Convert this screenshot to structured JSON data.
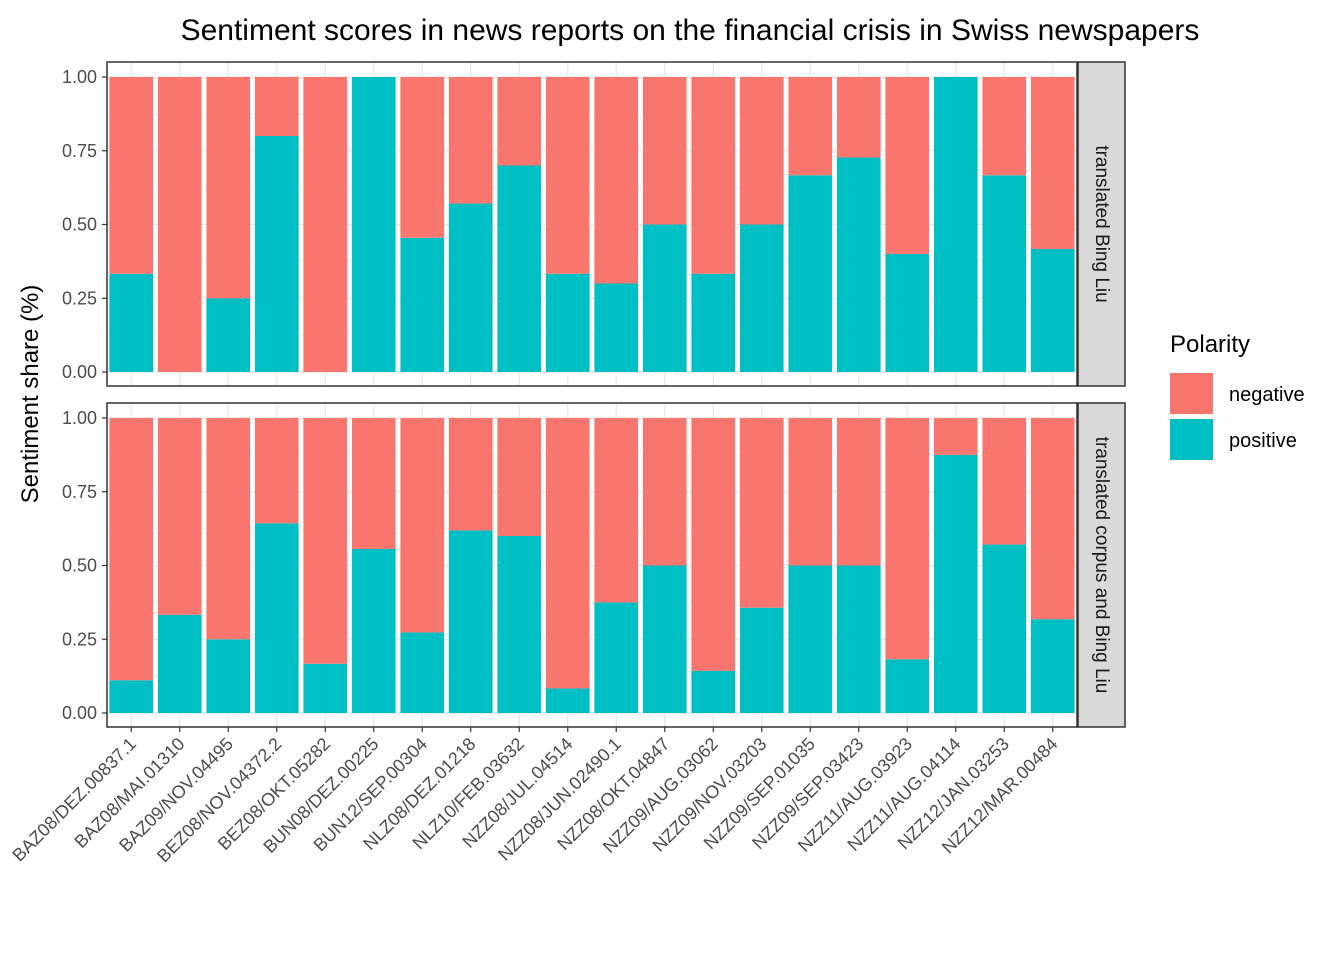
{
  "chart_data": {
    "type": "bar",
    "stacked": true,
    "facets": "rows",
    "title": "Sentiment scores in news reports on the financial crisis in Swiss newspapers",
    "xlabel": "",
    "ylabel": "Sentiment share (%)",
    "ylim": [
      0,
      1
    ],
    "yticks": [
      "0.00",
      "0.25",
      "0.50",
      "0.75",
      "1.00"
    ],
    "grid": true,
    "legend": {
      "title": "Polarity",
      "position": "right",
      "entries": [
        {
          "name": "negative",
          "color": "#F8766D"
        },
        {
          "name": "positive",
          "color": "#00BFC4"
        }
      ]
    },
    "categories": [
      "BAZ08/DEZ.00837.1",
      "BAZ08/MAI.01310",
      "BAZ09/NOV.04495",
      "BEZ08/NOV.04372.2",
      "BEZ08/OKT.05282",
      "BUN08/DEZ.00225",
      "BUN12/SEP.00304",
      "NLZ08/DEZ.01218",
      "NLZ10/FEB.03632",
      "NZZ08/JUL.04514",
      "NZZ08/JUN.02490.1",
      "NZZ08/OKT.04847",
      "NZZ09/AUG.03062",
      "NZZ09/NOV.03203",
      "NZZ09/SEP.01035",
      "NZZ09/SEP.03423",
      "NZZ11/AUG.03923",
      "NZZ11/AUG.04114",
      "NZZ12/JAN.03253",
      "NZZ12/MAR.00484"
    ],
    "panels": [
      {
        "strip": "translated Bing Liu",
        "series": [
          {
            "name": "positive",
            "values": [
              0.333,
              0,
              0.25,
              0.8,
              0,
              1,
              0.455,
              0.571,
              0.7,
              0.333,
              0.3,
              0.5,
              0.333,
              0.5,
              0.667,
              0.727,
              0.4,
              1,
              0.667,
              0.417
            ]
          },
          {
            "name": "negative",
            "values": [
              0.667,
              1,
              0.75,
              0.2,
              1,
              0,
              0.545,
              0.429,
              0.3,
              0.667,
              0.7,
              0.5,
              0.667,
              0.5,
              0.333,
              0.273,
              0.6,
              0,
              0.333,
              0.583
            ]
          }
        ]
      },
      {
        "strip": "translated corpus and Bing Liu",
        "series": [
          {
            "name": "positive",
            "values": [
              0.111,
              0.333,
              0.25,
              0.643,
              0.167,
              0.556,
              0.273,
              0.619,
              0.6,
              0.083,
              0.375,
              0.5,
              0.143,
              0.357,
              0.5,
              0.5,
              0.182,
              0.875,
              0.571,
              0.318
            ]
          },
          {
            "name": "negative",
            "values": [
              0.889,
              0.667,
              0.75,
              0.357,
              0.833,
              0.444,
              0.727,
              0.381,
              0.4,
              0.917,
              0.625,
              0.5,
              0.857,
              0.643,
              0.5,
              0.5,
              0.818,
              0.125,
              0.429,
              0.682
            ]
          }
        ]
      }
    ]
  }
}
